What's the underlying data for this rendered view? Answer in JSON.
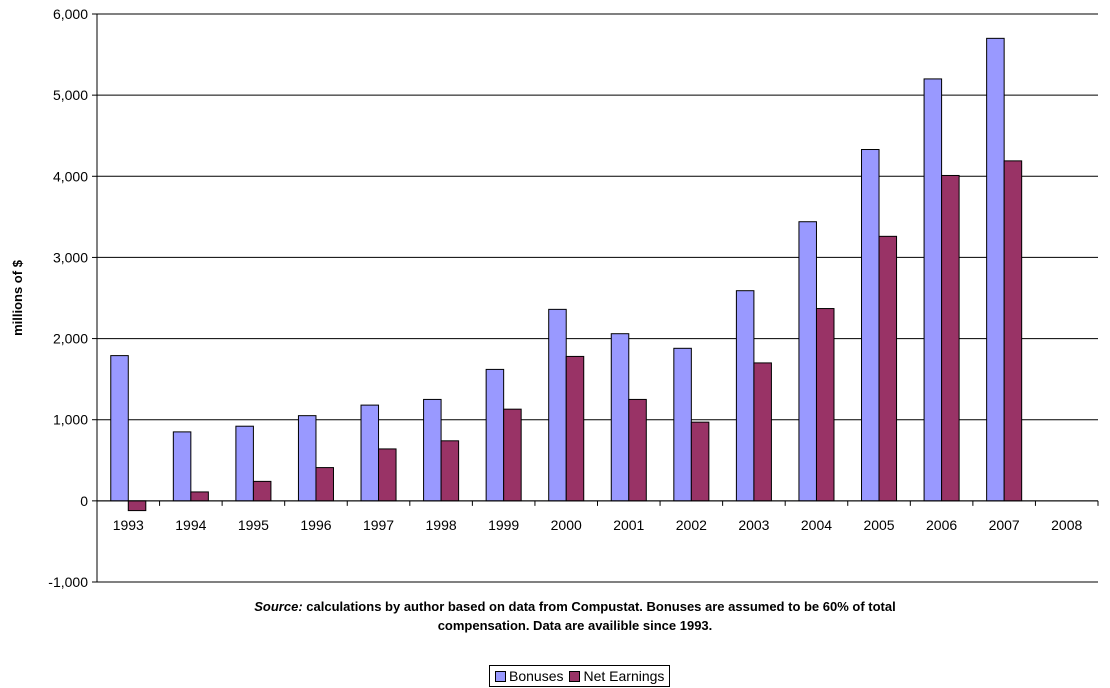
{
  "chart_data": {
    "type": "bar",
    "categories": [
      "1993",
      "1994",
      "1995",
      "1996",
      "1997",
      "1998",
      "1999",
      "2000",
      "2001",
      "2002",
      "2003",
      "2004",
      "2005",
      "2006",
      "2007",
      "2008"
    ],
    "series": [
      {
        "name": "Bonuses",
        "color": "#9999ff",
        "values": [
          1790,
          850,
          920,
          1050,
          1180,
          1250,
          1620,
          2360,
          2060,
          1880,
          2590,
          3440,
          4330,
          5200,
          5700,
          null
        ]
      },
      {
        "name": "Net Earnings",
        "color": "#993366",
        "values": [
          -120,
          110,
          240,
          410,
          640,
          740,
          1130,
          1780,
          1250,
          970,
          1700,
          2370,
          3260,
          4010,
          4190,
          null
        ]
      }
    ],
    "title": "",
    "xlabel": "",
    "ylabel": "millions of $",
    "ylim": [
      -1000,
      6000
    ],
    "yticks": [
      -1000,
      0,
      1000,
      2000,
      3000,
      4000,
      5000,
      6000
    ],
    "ytick_labels": [
      "-1,000",
      "0",
      "1,000",
      "2,000",
      "3,000",
      "4,000",
      "5,000",
      "6,000"
    ],
    "grid": true,
    "legend_position": "bottom"
  },
  "source": {
    "label": "Source:",
    "line1": "calculations by author based on data from Compustat. Bonuses are assumed to be 60% of total",
    "line2": "compensation. Data are availible since 1993."
  }
}
